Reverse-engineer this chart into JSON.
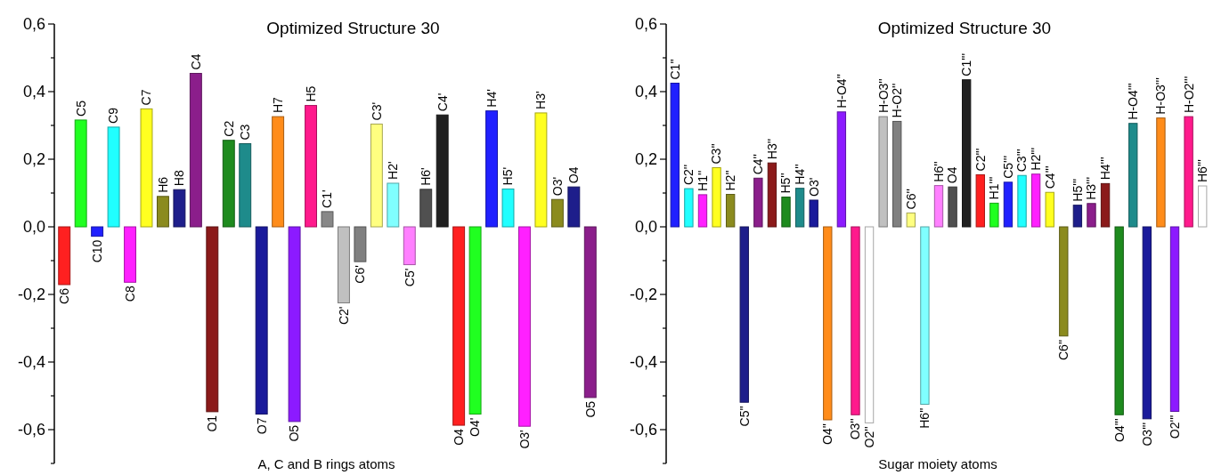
{
  "chart_data": [
    {
      "type": "bar",
      "title": "Optimized Structure 30",
      "xlabel": "A, C and B rings atoms",
      "categories": [
        "C6",
        "C5",
        "C10",
        "C9",
        "C8",
        "C7",
        "H6",
        "H8",
        "C4",
        "O1",
        "C2",
        "C3",
        "O7",
        "H7",
        "O5",
        "H5",
        "C1'",
        "C2'",
        "C6'",
        "C3'",
        "H2'",
        "C5'",
        "H6'",
        "C4'",
        "O4",
        "O4'",
        "H4'",
        "H5'",
        "O3'",
        "H3'",
        "O3'",
        "O4",
        "O5"
      ],
      "values": [
        -0.171,
        0.316,
        -0.028,
        0.295,
        -0.164,
        0.349,
        0.09,
        0.11,
        0.454,
        -0.547,
        0.256,
        0.246,
        -0.554,
        0.326,
        -0.576,
        0.359,
        0.045,
        -0.225,
        -0.103,
        0.304,
        0.129,
        -0.112,
        0.111,
        0.331,
        -0.587,
        -0.554,
        0.343,
        0.112,
        -0.59,
        0.337,
        0.081,
        0.118,
        -0.505
      ],
      "colors": [
        "#ff2020",
        "#20ff20",
        "#2020ff",
        "#20ffff",
        "#ff20ff",
        "#ffff20",
        "#8b8b1e",
        "#1e1e8b",
        "#8b1e8b",
        "#8b1a1a",
        "#1e8b1e",
        "#1e8b8b",
        "#1a1a9b",
        "#ff8c1a",
        "#8c1aff",
        "#ff1a8c",
        "#888888",
        "#c0c0c0",
        "#808080",
        "#ffff80",
        "#80ffff",
        "#ff80ff",
        "#505050",
        "#202020",
        "#ff2020",
        "#20ff20",
        "#2020ff",
        "#20ffff",
        "#ff20ff",
        "#ffff20",
        "#8b8b1e",
        "#1e1e8b",
        "#8b1e8b"
      ],
      "ylim": [
        -0.7,
        0.6
      ],
      "yticks": [
        {
          "value": -0.7,
          "label": null
        },
        {
          "value": -0.6,
          "label": "-0,6"
        },
        {
          "value": -0.5,
          "label": null
        },
        {
          "value": -0.4,
          "label": "-0,4"
        },
        {
          "value": -0.3,
          "label": null
        },
        {
          "value": -0.2,
          "label": "-0,2"
        },
        {
          "value": -0.1,
          "label": null
        },
        {
          "value": 0,
          "label": "0,0"
        },
        {
          "value": 0.1,
          "label": null
        },
        {
          "value": 0.2,
          "label": "0,2"
        },
        {
          "value": 0.3,
          "label": null
        },
        {
          "value": 0.4,
          "label": "0,4"
        },
        {
          "value": 0.5,
          "label": null
        },
        {
          "value": 0.6,
          "label": "0,6"
        }
      ]
    },
    {
      "type": "bar",
      "title": "Optimized Structure 30",
      "xlabel": "Sugar moiety atoms",
      "categories": [
        "C1''",
        "C2''",
        "H1''",
        "C3''",
        "H2''",
        "C5''",
        "C4''",
        "H3''",
        "H5''",
        "H4''",
        "O3'",
        "O4''",
        "H-O4''",
        "O3''",
        "O2''",
        "H-O3''",
        "H-O2''",
        "C6''",
        "H6''",
        "H6''",
        "O4",
        "C1'''",
        "C2'''",
        "H1'''",
        "C5'''",
        "C3'''",
        "H2'''",
        "C4'''",
        "C6''",
        "H5'''",
        "H3'''",
        "H4'''",
        "O4'''",
        "H-O4'''",
        "O3'''",
        "H-O3'''",
        "O2'''",
        "H-O2'''",
        "H6'''"
      ],
      "values": [
        0.425,
        0.113,
        0.095,
        0.175,
        0.096,
        -0.519,
        0.144,
        0.189,
        0.088,
        0.114,
        0.079,
        -0.571,
        0.34,
        -0.556,
        -0.58,
        0.326,
        0.312,
        0.041,
        -0.525,
        0.122,
        0.118,
        0.435,
        0.154,
        0.07,
        0.132,
        0.152,
        0.156,
        0.102,
        -0.323,
        0.064,
        0.069,
        0.128,
        -0.556,
        0.306,
        -0.568,
        0.322,
        -0.546,
        0.326,
        0.121
      ],
      "colors": [
        "#2020ff",
        "#20ffff",
        "#ff20ff",
        "#ffff20",
        "#8b8b1e",
        "#1e1e8b",
        "#8b1e8b",
        "#8b1a1a",
        "#1e8b1e",
        "#1e8b8b",
        "#1a1a9b",
        "#ff8c1a",
        "#8c1aff",
        "#ff1a8c",
        "#ffffff",
        "#c0c0c0",
        "#808080",
        "#ffff80",
        "#80ffff",
        "#ff80ff",
        "#505050",
        "#202020",
        "#ff2020",
        "#20ff20",
        "#2020ff",
        "#20ffff",
        "#ff20ff",
        "#ffff20",
        "#8b8b1e",
        "#1e1e8b",
        "#8b1e8b",
        "#8b1a1a",
        "#1e8b1e",
        "#1e8b8b",
        "#1a1a9b",
        "#ff8c1a",
        "#8c1aff",
        "#ff1a8c",
        "#ffffff"
      ],
      "ylim": [
        -0.7,
        0.6
      ],
      "yticks": [
        {
          "value": -0.7,
          "label": null
        },
        {
          "value": -0.6,
          "label": "-0,6"
        },
        {
          "value": -0.5,
          "label": null
        },
        {
          "value": -0.4,
          "label": "-0,4"
        },
        {
          "value": -0.3,
          "label": null
        },
        {
          "value": -0.2,
          "label": "-0,2"
        },
        {
          "value": -0.1,
          "label": null
        },
        {
          "value": 0,
          "label": "0,0"
        },
        {
          "value": 0.1,
          "label": null
        },
        {
          "value": 0.2,
          "label": "0,2"
        },
        {
          "value": 0.3,
          "label": null
        },
        {
          "value": 0.4,
          "label": "0,4"
        },
        {
          "value": 0.5,
          "label": null
        },
        {
          "value": 0.6,
          "label": "0,6"
        }
      ]
    }
  ]
}
